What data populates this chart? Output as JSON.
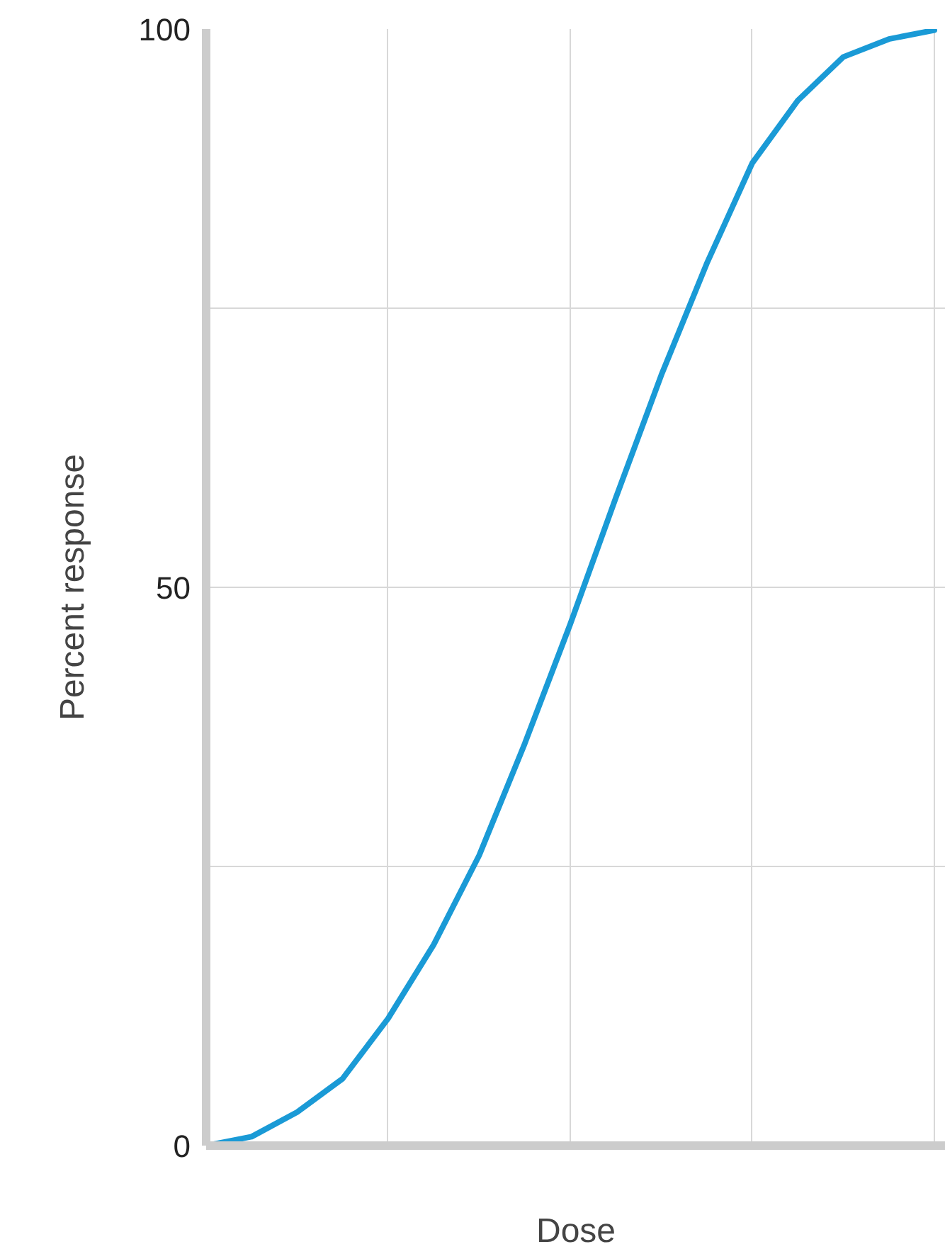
{
  "chart_data": {
    "type": "line",
    "xlabel": "Dose",
    "ylabel": "Percent response",
    "categories": [
      null,
      null,
      null,
      null,
      null,
      null,
      null,
      null,
      null,
      null,
      null,
      null,
      null,
      null,
      null,
      null,
      null
    ],
    "series": [
      {
        "color": "#1a9ad6",
        "values": [
          0,
          0.8,
          3,
          6,
          11.4,
          18,
          26,
          36,
          46.7,
          58,
          69,
          79,
          88,
          93.6,
          97.5,
          99.1,
          99.9
        ]
      }
    ],
    "ylim": [
      0,
      100
    ],
    "yticks": [
      0,
      {
        "value": 25,
        "label": null
      },
      50,
      {
        "value": 75,
        "label": null
      },
      100
    ],
    "grid": true,
    "marker": "none",
    "line_style": "solid"
  }
}
